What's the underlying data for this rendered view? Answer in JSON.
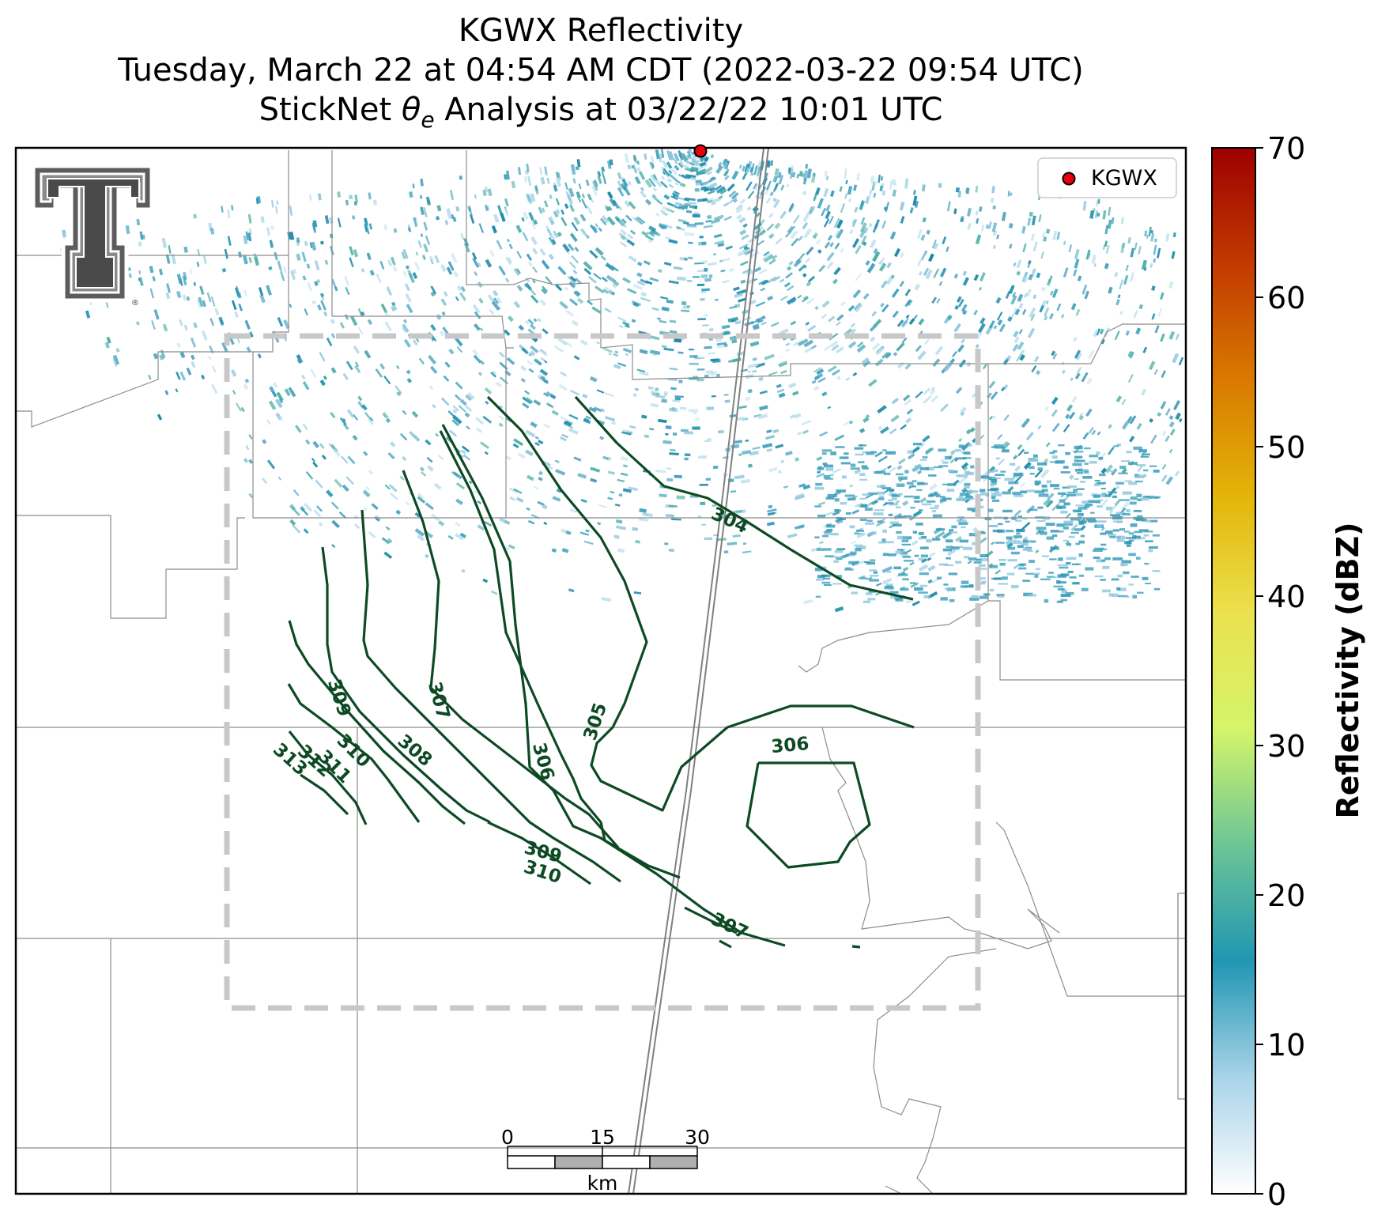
{
  "title": {
    "line1": "KGWX Reflectivity",
    "line2": "Tuesday, March 22 at 04:54 AM CDT (2022-03-22 09:54 UTC)",
    "line3_prefix": "StickNet ",
    "line3_symbol": "θ",
    "line3_subscript": "e",
    "line3_suffix": " Analysis at 03/22/22 10:01 UTC"
  },
  "legend": {
    "label": "KGWX",
    "marker_color": "#e8000b"
  },
  "colorbar": {
    "label": "Reflectivity (dBZ)",
    "ticks": [
      "0",
      "10",
      "20",
      "30",
      "40",
      "50",
      "60",
      "70"
    ],
    "range": [
      0,
      70
    ],
    "colors": [
      "#ffffff",
      "#a9d3e8",
      "#2196b3",
      "#6cc596",
      "#d4f56a",
      "#ebe14e",
      "#e3b50a",
      "#d97a00",
      "#c23a00",
      "#9e0000"
    ]
  },
  "contours": {
    "color": "#0d4a24",
    "labels": [
      "304",
      "305",
      "306",
      "307",
      "308",
      "309",
      "310",
      "311",
      "312",
      "313",
      "306",
      "307",
      "309",
      "310"
    ]
  },
  "scalebar": {
    "ticks": [
      "0",
      "15",
      "30"
    ],
    "unit": "km"
  },
  "colors": {
    "reflectivity_dot": "#2a93b5",
    "county_line": "#8c8c8c",
    "analysis_box": "#c8c8c8",
    "highway": "#808080"
  }
}
